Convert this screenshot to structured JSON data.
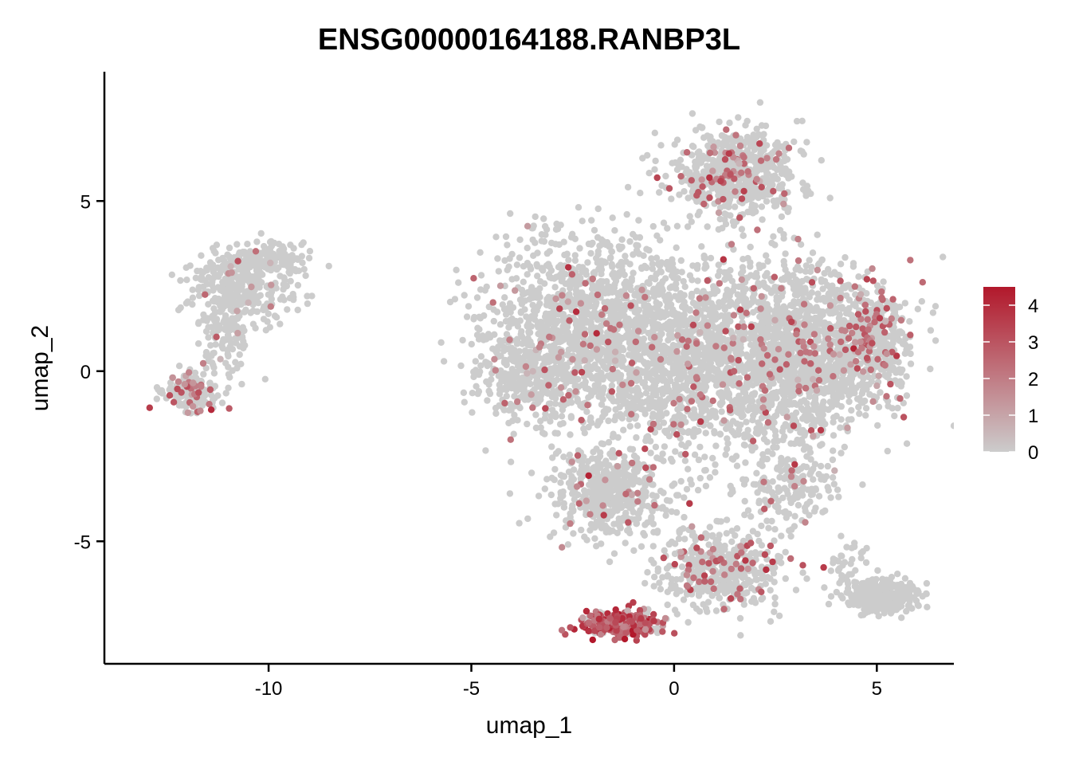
{
  "chart_data": {
    "type": "scatter",
    "title": "ENSG00000164188.RANBP3L",
    "xlabel": "umap_1",
    "ylabel": "umap_2",
    "xlim": [
      -14.05,
      6.9
    ],
    "ylim": [
      -8.6,
      8.8
    ],
    "x_ticks": [
      -10,
      -5,
      0,
      5
    ],
    "x_tick_labels": [
      "-10",
      "-5",
      "0",
      "5"
    ],
    "y_ticks": [
      -5,
      0,
      5
    ],
    "y_tick_labels": [
      "-5",
      "0",
      "5"
    ],
    "grid": false,
    "colorbar": {
      "range": [
        0,
        4.5
      ],
      "ticks": [
        0,
        1,
        2,
        3,
        4
      ],
      "tick_labels": [
        "0",
        "1",
        "2",
        "3",
        "4"
      ],
      "low_color": "#cccccc",
      "high_color": "#b2182b",
      "placement": "right"
    },
    "clusters": [
      {
        "x": -10.7,
        "y": 2.5,
        "sx": 0.75,
        "sy": 0.7,
        "n": 360,
        "expr_rate": 0.02,
        "expr_mean": 1.5
      },
      {
        "x": -9.8,
        "y": 3.3,
        "sx": 0.5,
        "sy": 0.25,
        "n": 90,
        "expr_rate": 0.0,
        "expr_mean": 0
      },
      {
        "x": -11.1,
        "y": 1.0,
        "sx": 0.35,
        "sy": 0.7,
        "n": 110,
        "expr_rate": 0.02,
        "expr_mean": 1.5
      },
      {
        "x": -11.9,
        "y": -0.65,
        "sx": 0.4,
        "sy": 0.35,
        "n": 170,
        "expr_rate": 0.22,
        "expr_mean": 2.3
      },
      {
        "x": -2.2,
        "y": 1.3,
        "sx": 1.5,
        "sy": 1.6,
        "n": 1300,
        "expr_rate": 0.045,
        "expr_mean": 2.0
      },
      {
        "x": 0.6,
        "y": 0.4,
        "sx": 1.7,
        "sy": 1.7,
        "n": 1500,
        "expr_rate": 0.05,
        "expr_mean": 2.1
      },
      {
        "x": 3.3,
        "y": 0.5,
        "sx": 1.2,
        "sy": 1.5,
        "n": 1100,
        "expr_rate": 0.08,
        "expr_mean": 2.2
      },
      {
        "x": 4.9,
        "y": 0.9,
        "sx": 0.5,
        "sy": 0.9,
        "n": 340,
        "expr_rate": 0.16,
        "expr_mean": 2.3
      },
      {
        "x": -3.6,
        "y": -0.4,
        "sx": 0.8,
        "sy": 0.55,
        "n": 200,
        "expr_rate": 0.04,
        "expr_mean": 2.0
      },
      {
        "x": 1.5,
        "y": 5.8,
        "sx": 0.85,
        "sy": 0.75,
        "n": 620,
        "expr_rate": 0.1,
        "expr_mean": 2.3
      },
      {
        "x": -1.6,
        "y": -3.6,
        "sx": 0.9,
        "sy": 0.8,
        "n": 480,
        "expr_rate": 0.06,
        "expr_mean": 2.2
      },
      {
        "x": 1.1,
        "y": -5.8,
        "sx": 0.9,
        "sy": 0.7,
        "n": 460,
        "expr_rate": 0.14,
        "expr_mean": 2.4
      },
      {
        "x": 2.8,
        "y": -3.3,
        "sx": 0.6,
        "sy": 0.6,
        "n": 160,
        "expr_rate": 0.07,
        "expr_mean": 2.3
      },
      {
        "x": -1.3,
        "y": -7.4,
        "sx": 0.55,
        "sy": 0.22,
        "n": 300,
        "expr_rate": 0.8,
        "expr_mean": 3.0
      },
      {
        "x": 5.1,
        "y": -6.6,
        "sx": 0.55,
        "sy": 0.28,
        "n": 330,
        "expr_rate": 0.0,
        "expr_mean": 0
      },
      {
        "x": 4.2,
        "y": -5.5,
        "sx": 0.3,
        "sy": 0.35,
        "n": 30,
        "expr_rate": 0.0,
        "expr_mean": 0
      }
    ]
  }
}
